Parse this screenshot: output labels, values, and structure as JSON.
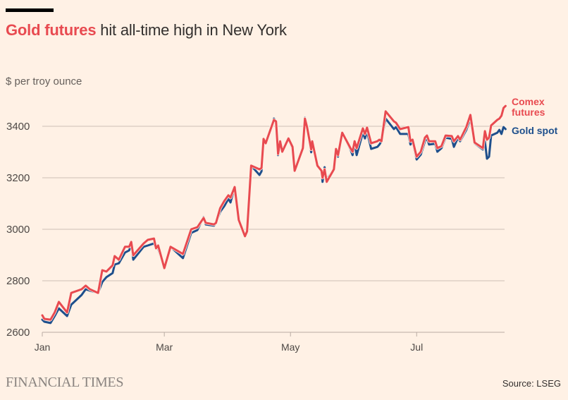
{
  "header": {
    "title_highlight": "Gold futures",
    "title_rest": " hit all-time high in New York",
    "subtitle": "$ per troy ounce"
  },
  "footer": {
    "logo": "FINANCIAL TIMES",
    "source": "Source: LSEG"
  },
  "colors": {
    "background": "#fff1e5",
    "futures": "#e84a50",
    "spot": "#1e4f8c",
    "gridline": "#ccbfb5"
  },
  "chart_data": {
    "type": "line",
    "title": "Gold futures hit all-time high in New York",
    "ylabel": "$ per troy ounce",
    "xlabel": "",
    "x_unit": "days since Jan 1",
    "ylim": [
      2600,
      3500
    ],
    "yticks": [
      2600,
      2800,
      3000,
      3200,
      3400
    ],
    "xticks": [
      {
        "label": "Jan",
        "day": 0
      },
      {
        "label": "Mar",
        "day": 59
      },
      {
        "label": "May",
        "day": 120
      },
      {
        "label": "Jul",
        "day": 181
      }
    ],
    "xlim": [
      0,
      224
    ],
    "grid": true,
    "legend_placement": "right (inline labels at line ends)",
    "series": [
      {
        "name": "Comex futures",
        "label_lines": [
          "Comex",
          "futures"
        ],
        "color": "#e84a50",
        "points": [
          [
            0,
            2666
          ],
          [
            1,
            2652
          ],
          [
            4,
            2649
          ],
          [
            6,
            2677
          ],
          [
            8,
            2718
          ],
          [
            12,
            2677
          ],
          [
            14,
            2753
          ],
          [
            19,
            2767
          ],
          [
            21,
            2781
          ],
          [
            23,
            2767
          ],
          [
            27,
            2753
          ],
          [
            29,
            2841
          ],
          [
            31,
            2836
          ],
          [
            34,
            2860
          ],
          [
            35,
            2896
          ],
          [
            37,
            2882
          ],
          [
            40,
            2932
          ],
          [
            42,
            2932
          ],
          [
            43,
            2951
          ],
          [
            44,
            2899
          ],
          [
            49,
            2945
          ],
          [
            51,
            2959
          ],
          [
            54,
            2964
          ],
          [
            55,
            2926
          ],
          [
            56,
            2937
          ],
          [
            59,
            2849
          ],
          [
            62,
            2932
          ],
          [
            65,
            2918
          ],
          [
            68,
            2904
          ],
          [
            72,
            3000
          ],
          [
            75,
            3008
          ],
          [
            78,
            3044
          ],
          [
            79,
            3025
          ],
          [
            83,
            3019
          ],
          [
            84,
            3025
          ],
          [
            86,
            3082
          ],
          [
            88,
            3110
          ],
          [
            90,
            3132
          ],
          [
            91,
            3123
          ],
          [
            93,
            3164
          ],
          [
            95,
            3036
          ],
          [
            98,
            2973
          ],
          [
            99,
            2992
          ],
          [
            101,
            3247
          ],
          [
            105,
            3233
          ],
          [
            106,
            3238
          ],
          [
            107,
            3351
          ],
          [
            108,
            3334
          ],
          [
            112,
            3425
          ],
          [
            113,
            3419
          ],
          [
            114,
            3293
          ],
          [
            115,
            3342
          ],
          [
            116,
            3301
          ],
          [
            119,
            3353
          ],
          [
            121,
            3320
          ],
          [
            122,
            3227
          ],
          [
            126,
            3315
          ],
          [
            127,
            3430
          ],
          [
            128,
            3397
          ],
          [
            130,
            3310
          ],
          [
            130.5,
            3342
          ],
          [
            133,
            3247
          ],
          [
            135,
            3227
          ],
          [
            135.5,
            3200
          ],
          [
            136.5,
            3233
          ],
          [
            137.5,
            3184
          ],
          [
            141,
            3233
          ],
          [
            142,
            3312
          ],
          [
            143,
            3288
          ],
          [
            145,
            3375
          ],
          [
            149,
            3315
          ],
          [
            150,
            3301
          ],
          [
            151,
            3342
          ],
          [
            152,
            3315
          ],
          [
            155,
            3392
          ],
          [
            156,
            3370
          ],
          [
            157,
            3395
          ],
          [
            159,
            3334
          ],
          [
            162,
            3342
          ],
          [
            163,
            3348
          ],
          [
            164,
            3342
          ],
          [
            166,
            3458
          ],
          [
            170,
            3419
          ],
          [
            171,
            3414
          ],
          [
            173,
            3389
          ],
          [
            177,
            3397
          ],
          [
            178,
            3342
          ],
          [
            179,
            3348
          ],
          [
            181,
            3282
          ],
          [
            183,
            3301
          ],
          [
            185,
            3356
          ],
          [
            186,
            3364
          ],
          [
            187,
            3342
          ],
          [
            190,
            3342
          ],
          [
            191,
            3315
          ],
          [
            193,
            3323
          ],
          [
            195,
            3364
          ],
          [
            198,
            3362
          ],
          [
            199,
            3342
          ],
          [
            201,
            3362
          ],
          [
            202,
            3348
          ],
          [
            205,
            3397
          ],
          [
            207,
            3444
          ],
          [
            209,
            3337
          ],
          [
            213,
            3315
          ],
          [
            214,
            3381
          ],
          [
            215,
            3348
          ],
          [
            216,
            3356
          ],
          [
            217,
            3403
          ],
          [
            220,
            3425
          ],
          [
            221,
            3430
          ],
          [
            222,
            3441
          ],
          [
            223,
            3471
          ],
          [
            224,
            3479
          ]
        ]
      },
      {
        "name": "Gold spot",
        "label_lines": [
          "Gold spot"
        ],
        "color": "#1e4f8c",
        "points": [
          [
            0,
            2649
          ],
          [
            1,
            2641
          ],
          [
            4,
            2636
          ],
          [
            6,
            2663
          ],
          [
            8,
            2693
          ],
          [
            12,
            2663
          ],
          [
            14,
            2707
          ],
          [
            19,
            2745
          ],
          [
            21,
            2767
          ],
          [
            23,
            2762
          ],
          [
            27,
            2753
          ],
          [
            29,
            2795
          ],
          [
            31,
            2814
          ],
          [
            34,
            2830
          ],
          [
            35,
            2863
          ],
          [
            37,
            2868
          ],
          [
            40,
            2910
          ],
          [
            42,
            2918
          ],
          [
            43,
            2945
          ],
          [
            44,
            2882
          ],
          [
            49,
            2932
          ],
          [
            51,
            2937
          ],
          [
            54,
            2945
          ],
          [
            55,
            2926
          ],
          [
            56,
            2926
          ],
          [
            59,
            2849
          ],
          [
            62,
            2932
          ],
          [
            65,
            2910
          ],
          [
            68,
            2888
          ],
          [
            72,
            2986
          ],
          [
            75,
            2997
          ],
          [
            78,
            3047
          ],
          [
            79,
            3019
          ],
          [
            83,
            3014
          ],
          [
            84,
            3025
          ],
          [
            86,
            3068
          ],
          [
            88,
            3090
          ],
          [
            90,
            3118
          ],
          [
            91,
            3104
          ],
          [
            93,
            3164
          ],
          [
            95,
            3036
          ],
          [
            98,
            2973
          ],
          [
            99,
            2992
          ],
          [
            101,
            3247
          ],
          [
            105,
            3211
          ],
          [
            106,
            3225
          ],
          [
            107,
            3351
          ],
          [
            108,
            3334
          ],
          [
            112,
            3430
          ],
          [
            113,
            3419
          ],
          [
            114,
            3288
          ],
          [
            115,
            3342
          ],
          [
            116,
            3307
          ],
          [
            119,
            3351
          ],
          [
            121,
            3315
          ],
          [
            122,
            3227
          ],
          [
            126,
            3315
          ],
          [
            127,
            3433
          ],
          [
            128,
            3397
          ],
          [
            130,
            3299
          ],
          [
            130.5,
            3342
          ],
          [
            133,
            3247
          ],
          [
            135,
            3227
          ],
          [
            135.5,
            3184
          ],
          [
            136.5,
            3241
          ],
          [
            137.5,
            3192
          ],
          [
            141,
            3233
          ],
          [
            142,
            3312
          ],
          [
            143,
            3282
          ],
          [
            145,
            3375
          ],
          [
            149,
            3310
          ],
          [
            150,
            3288
          ],
          [
            151,
            3334
          ],
          [
            152,
            3288
          ],
          [
            155,
            3375
          ],
          [
            156,
            3353
          ],
          [
            157,
            3381
          ],
          [
            159,
            3312
          ],
          [
            162,
            3320
          ],
          [
            163,
            3329
          ],
          [
            164,
            3342
          ],
          [
            166,
            3430
          ],
          [
            170,
            3389
          ],
          [
            171,
            3397
          ],
          [
            173,
            3370
          ],
          [
            177,
            3370
          ],
          [
            178,
            3329
          ],
          [
            179,
            3342
          ],
          [
            181,
            3271
          ],
          [
            183,
            3290
          ],
          [
            185,
            3342
          ],
          [
            186,
            3356
          ],
          [
            187,
            3329
          ],
          [
            190,
            3332
          ],
          [
            191,
            3301
          ],
          [
            193,
            3315
          ],
          [
            195,
            3356
          ],
          [
            198,
            3351
          ],
          [
            199,
            3320
          ],
          [
            201,
            3356
          ],
          [
            202,
            3342
          ],
          [
            205,
            3386
          ],
          [
            207,
            3430
          ],
          [
            209,
            3334
          ],
          [
            213,
            3310
          ],
          [
            214,
            3342
          ],
          [
            215,
            3274
          ],
          [
            216,
            3282
          ],
          [
            217,
            3364
          ],
          [
            220,
            3375
          ],
          [
            221,
            3386
          ],
          [
            222,
            3370
          ],
          [
            223,
            3397
          ],
          [
            224,
            3389
          ]
        ]
      }
    ]
  }
}
